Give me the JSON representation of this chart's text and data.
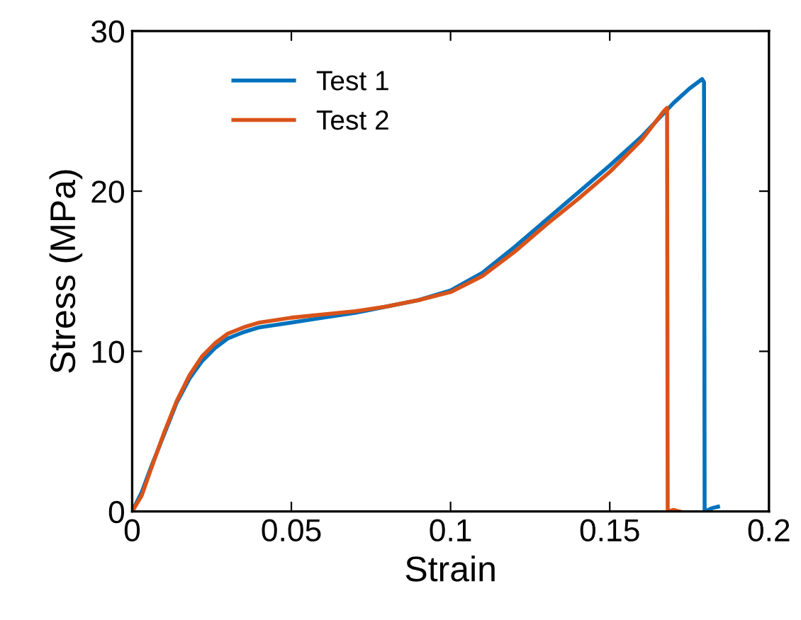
{
  "chart_data": {
    "type": "line",
    "xlabel": "Strain",
    "ylabel": "Stress (MPa)",
    "xlim": [
      0,
      0.2
    ],
    "ylim": [
      0,
      30
    ],
    "xticks": [
      0,
      0.05,
      0.1,
      0.15,
      0.2
    ],
    "yticks": [
      0,
      10,
      20,
      30
    ],
    "grid": false,
    "legend": "top left",
    "line_style": "solid",
    "marker": "none",
    "series": [
      {
        "name": "Test 1",
        "color": "#0072bd",
        "x": [
          0,
          0.003,
          0.006,
          0.01,
          0.014,
          0.018,
          0.022,
          0.026,
          0.03,
          0.035,
          0.04,
          0.05,
          0.06,
          0.07,
          0.08,
          0.09,
          0.1,
          0.11,
          0.12,
          0.13,
          0.14,
          0.15,
          0.16,
          0.17,
          0.175,
          0.179,
          0.1796,
          0.1798,
          0.182,
          0.184
        ],
        "values": [
          0,
          1.2,
          2.8,
          4.8,
          6.8,
          8.3,
          9.4,
          10.2,
          10.8,
          11.2,
          11.5,
          11.8,
          12.1,
          12.4,
          12.8,
          13.2,
          13.8,
          14.9,
          16.5,
          18.2,
          19.9,
          21.6,
          23.4,
          25.5,
          26.4,
          27.0,
          26.8,
          0,
          0.2,
          0.3
        ]
      },
      {
        "name": "Test 2",
        "color": "#d95319",
        "x": [
          0,
          0.003,
          0.006,
          0.01,
          0.014,
          0.018,
          0.022,
          0.026,
          0.03,
          0.035,
          0.04,
          0.05,
          0.06,
          0.07,
          0.08,
          0.09,
          0.1,
          0.11,
          0.12,
          0.13,
          0.14,
          0.15,
          0.16,
          0.167,
          0.168,
          0.1682,
          0.17,
          0.172
        ],
        "values": [
          0,
          1.0,
          2.7,
          4.9,
          6.9,
          8.5,
          9.7,
          10.5,
          11.1,
          11.5,
          11.8,
          12.1,
          12.3,
          12.5,
          12.8,
          13.2,
          13.7,
          14.7,
          16.2,
          17.9,
          19.5,
          21.2,
          23.2,
          25.0,
          25.2,
          0,
          0.1,
          0
        ]
      }
    ]
  }
}
